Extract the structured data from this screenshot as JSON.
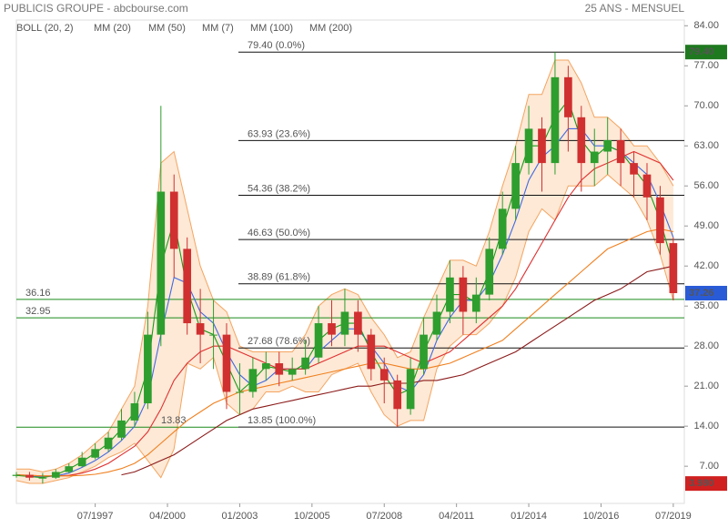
{
  "chart_data": {
    "type": "candlestick",
    "title": "PUBLICIS GROUPE - abcbourse.com",
    "subtitle": "25 ANS - MENSUEL",
    "x": [
      1994.5,
      1995,
      1995.5,
      1996,
      1996.5,
      1997,
      1997.5,
      1998,
      1998.5,
      1999,
      1999.5,
      2000,
      2000.5,
      2001,
      2001.5,
      2002,
      2002.5,
      2003,
      2003.5,
      2004,
      2004.5,
      2005,
      2005.5,
      2006,
      2006.5,
      2007,
      2007.5,
      2008,
      2008.5,
      2009,
      2009.5,
      2010,
      2010.5,
      2011,
      2011.5,
      2012,
      2012.5,
      2013,
      2013.5,
      2014,
      2014.5,
      2015,
      2015.5,
      2016,
      2016.5,
      2017,
      2017.5,
      2018,
      2018.5,
      2019,
      2019.5
    ],
    "xlim": [
      1994.5,
      2019.92
    ],
    "xticks": [
      {
        "value": 1997.5,
        "label": "07/1997"
      },
      {
        "value": 2000.25,
        "label": "04/2000"
      },
      {
        "value": 2003,
        "label": "01/2003"
      },
      {
        "value": 2005.75,
        "label": "10/2005"
      },
      {
        "value": 2008.5,
        "label": "07/2008"
      },
      {
        "value": 2011.25,
        "label": "04/2011"
      },
      {
        "value": 2014,
        "label": "01/2014"
      },
      {
        "value": 2016.75,
        "label": "10/2016"
      },
      {
        "value": 2019.5,
        "label": "07/2019"
      }
    ],
    "ylim": [
      0.5,
      85
    ],
    "yticks": [
      {
        "value": 7,
        "label": "7.00"
      },
      {
        "value": 14,
        "label": "14.00"
      },
      {
        "value": 21,
        "label": "21.00"
      },
      {
        "value": 28,
        "label": "28.00"
      },
      {
        "value": 35,
        "label": "35.00"
      },
      {
        "value": 42,
        "label": "42.00"
      },
      {
        "value": 49,
        "label": "49.00"
      },
      {
        "value": 56,
        "label": "56.00"
      },
      {
        "value": 63,
        "label": "63.00"
      },
      {
        "value": 70,
        "label": "70.00"
      },
      {
        "value": 77,
        "label": "77.00"
      },
      {
        "value": 84,
        "label": "84.00"
      }
    ],
    "up_color": "#2e9e2e",
    "down_color": "#d03030",
    "ohlc": {
      "open": [
        5.3,
        5.5,
        5,
        5,
        6,
        7,
        8.5,
        10,
        12,
        15,
        18,
        30,
        55,
        45,
        32,
        30,
        30,
        20,
        20,
        24,
        25,
        23,
        24,
        26,
        32,
        30,
        34,
        30,
        24,
        22,
        17,
        24,
        30,
        34,
        40,
        34,
        37,
        45,
        52,
        60,
        66,
        60,
        75,
        68,
        60,
        62,
        64,
        60,
        58,
        54,
        46
      ],
      "high": [
        6,
        6,
        5.8,
        6.5,
        7.5,
        9.5,
        11,
        13,
        17,
        20,
        34,
        70,
        58,
        47,
        38,
        36,
        32,
        25,
        26,
        27,
        27,
        26,
        29,
        35,
        36,
        38,
        36,
        31,
        26,
        23,
        26,
        33,
        37,
        43,
        42,
        40,
        47,
        55,
        63,
        70,
        68,
        79.4,
        77,
        70,
        66,
        68,
        66,
        62,
        60,
        56,
        47
      ],
      "low": [
        5,
        4.5,
        3.98,
        4.8,
        5.8,
        6.8,
        8.2,
        9.5,
        11.5,
        14,
        17,
        28,
        40,
        30,
        25,
        24,
        17,
        16,
        19,
        22,
        21,
        22,
        23,
        25,
        28,
        28,
        27,
        22,
        18,
        13.85,
        16,
        23,
        29,
        32,
        30,
        32,
        36,
        44,
        50,
        58,
        55,
        58,
        62,
        55,
        56,
        58,
        56,
        54,
        50,
        44,
        36
      ],
      "close": [
        5.5,
        5,
        5,
        6,
        7,
        8.5,
        10,
        12,
        15,
        18,
        30,
        55,
        45,
        32,
        30,
        30,
        20,
        20,
        24,
        25,
        23,
        24,
        26,
        32,
        30,
        34,
        30,
        24,
        22,
        17,
        24,
        30,
        34,
        40,
        34,
        37,
        45,
        52,
        60,
        66,
        60,
        75,
        68,
        60,
        62,
        64,
        60,
        58,
        54,
        46,
        37.26
      ]
    },
    "bollinger": {
      "name": "BOLL (20, 2)",
      "color": "#f4a460",
      "fill": "#fde3cc",
      "upper": [
        6.5,
        6.5,
        6,
        6.5,
        7.5,
        9,
        11,
        13,
        17,
        21,
        35,
        60,
        62,
        52,
        42,
        36,
        34,
        28,
        27,
        27,
        27,
        27,
        30,
        35,
        37,
        38,
        37,
        33,
        30,
        26,
        27,
        33,
        38,
        43,
        43,
        42,
        48,
        56,
        63,
        72,
        72,
        78,
        78,
        74,
        68,
        68,
        66,
        63,
        63,
        60,
        56
      ],
      "lower": [
        4.5,
        4,
        4,
        4.5,
        5,
        6,
        7,
        8.5,
        9.5,
        11,
        8,
        5,
        10,
        25,
        24,
        26,
        18,
        16,
        17,
        20,
        20,
        21,
        20,
        20,
        23,
        24,
        25,
        20,
        16,
        14,
        15,
        15,
        24,
        28,
        30,
        30,
        32,
        35,
        40,
        48,
        52,
        50,
        56,
        56,
        56,
        58,
        56,
        54,
        50,
        44,
        36
      ]
    },
    "series": [
      {
        "name": "MM (20)",
        "color": "#4169e1",
        "values": [
          5.4,
          5.3,
          5.1,
          5.3,
          5.8,
          6.8,
          8,
          9.5,
          11.5,
          14,
          19,
          30,
          40,
          39,
          34,
          32,
          27,
          23,
          21,
          22,
          24,
          24,
          24,
          27,
          29,
          31,
          31,
          28,
          25,
          21,
          20,
          23,
          29,
          33,
          36,
          36,
          39,
          44,
          50,
          57,
          61,
          63,
          66,
          66,
          63,
          63,
          62,
          60,
          58,
          53,
          47
        ]
      },
      {
        "name": "MM (50)",
        "color": "#e03030",
        "values": [
          5.5,
          5.4,
          5.3,
          5.3,
          5.4,
          5.8,
          6.5,
          7.5,
          9,
          10.5,
          13,
          17,
          22,
          25,
          27,
          28,
          28,
          27,
          26,
          25,
          24,
          24,
          24,
          25,
          26,
          27,
          28,
          28,
          28,
          27,
          26,
          25,
          26,
          27,
          29,
          31,
          33,
          35,
          38,
          42,
          46,
          50,
          54,
          57,
          59,
          60,
          61,
          62,
          61,
          60,
          57
        ]
      },
      {
        "name": "MM (7)",
        "color": "#1a9a1a",
        "values": [
          5.4,
          5.2,
          5,
          5.5,
          6.5,
          7.8,
          9.3,
          11,
          13.5,
          16.5,
          24,
          42,
          50,
          38,
          31,
          30,
          25,
          20,
          22,
          24.5,
          24,
          23.5,
          25,
          29,
          31,
          32,
          32,
          27,
          23,
          19.5,
          20.5,
          27,
          32,
          37,
          37,
          35.5,
          41,
          48.5,
          56,
          63,
          63,
          68,
          71,
          64,
          61,
          63,
          62,
          59,
          56,
          50,
          42
        ]
      },
      {
        "name": "MM (100)",
        "color": "#f08020",
        "values": [
          5.5,
          5.4,
          5.3,
          5.3,
          5.3,
          5.4,
          5.6,
          6,
          6.6,
          7.5,
          9,
          11,
          13,
          15,
          16.5,
          18,
          19,
          20,
          20.5,
          21,
          21.5,
          22,
          22.5,
          23,
          23.5,
          24,
          24.5,
          25,
          25,
          24.5,
          24,
          24,
          24.5,
          25,
          26,
          27,
          28,
          29,
          31,
          33,
          35,
          37,
          39,
          41,
          43,
          45,
          46,
          47,
          48,
          48.5,
          48
        ]
      },
      {
        "name": "MM (200)",
        "color": "#8b1a1a",
        "values": [
          null,
          null,
          null,
          null,
          null,
          null,
          null,
          null,
          5.5,
          6,
          7,
          8,
          9,
          10.5,
          12,
          13.5,
          15,
          16,
          17,
          17.5,
          18,
          18.5,
          19,
          19.5,
          20,
          20.5,
          21,
          21,
          21.5,
          21.5,
          21.5,
          22,
          22,
          22.5,
          23,
          24,
          25,
          26,
          27,
          28.5,
          30,
          31.5,
          33,
          34.5,
          36,
          37,
          38,
          39.5,
          41,
          41.5,
          42
        ]
      }
    ],
    "fibonacci": [
      {
        "value": 79.4,
        "label": "79.40 (0.0%)"
      },
      {
        "value": 63.93,
        "label": "63.93 (23.6%)"
      },
      {
        "value": 54.36,
        "label": "54.36 (38.2%)"
      },
      {
        "value": 46.63,
        "label": "46.63 (50.0%)"
      },
      {
        "value": 38.89,
        "label": "38.89 (61.8%)"
      },
      {
        "value": 27.68,
        "label": "27.68 (78.6%)"
      },
      {
        "value": 13.85,
        "label": "13.85 (100.0%)"
      }
    ],
    "support_lines": [
      {
        "value": 36.16,
        "label": "36.16"
      },
      {
        "value": 32.95,
        "label": "32.95"
      },
      {
        "value": 13.83,
        "label": "13.83"
      }
    ],
    "price_labels": [
      {
        "value": 79.4,
        "label": "79.40",
        "color": "#1f7a1f"
      },
      {
        "value": 37.26,
        "label": "37.26",
        "color": "#2a5bd7"
      },
      {
        "value": 3.98,
        "label": "3.980",
        "color": "#d02020"
      }
    ]
  }
}
